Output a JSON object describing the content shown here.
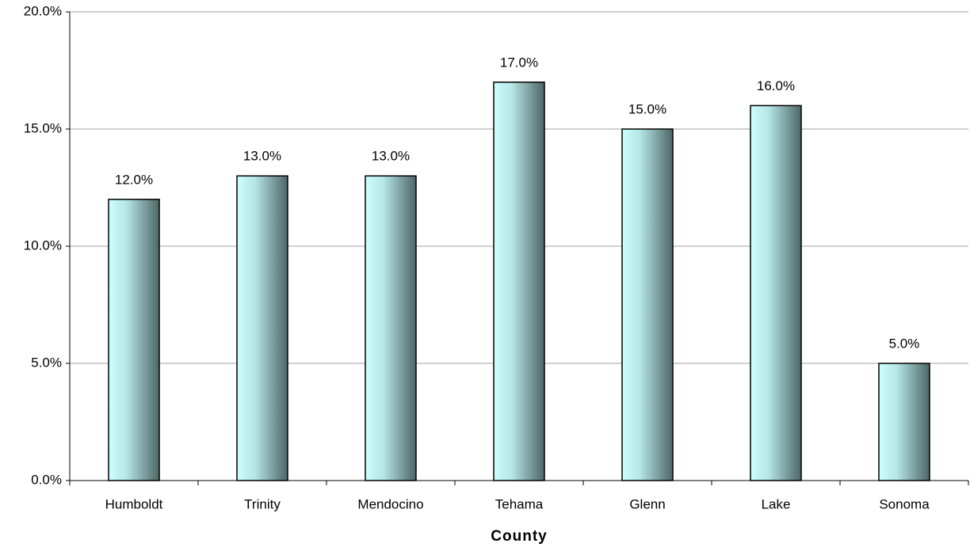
{
  "chart_data": {
    "type": "bar",
    "x_label": "County",
    "categories": [
      "Humboldt",
      "Trinity",
      "Mendocino",
      "Tehama",
      "Glenn",
      "Lake",
      "Sonoma"
    ],
    "values": [
      12,
      13,
      13,
      17,
      15,
      16,
      5
    ],
    "value_labels": [
      "12.0%",
      "13.0%",
      "13.0%",
      "17.0%",
      "15.0%",
      "16.0%",
      "5.0%"
    ],
    "color": "#ccffff",
    "ylim": [
      0,
      20
    ],
    "yticks": [
      {
        "value": 0,
        "label": "0.0%"
      },
      {
        "value": 5,
        "label": "5.0%"
      },
      {
        "value": 10,
        "label": "10.0%"
      },
      {
        "value": 15,
        "label": "15.0%"
      },
      {
        "value": 20,
        "label": "20.0%"
      }
    ],
    "grid": true
  }
}
